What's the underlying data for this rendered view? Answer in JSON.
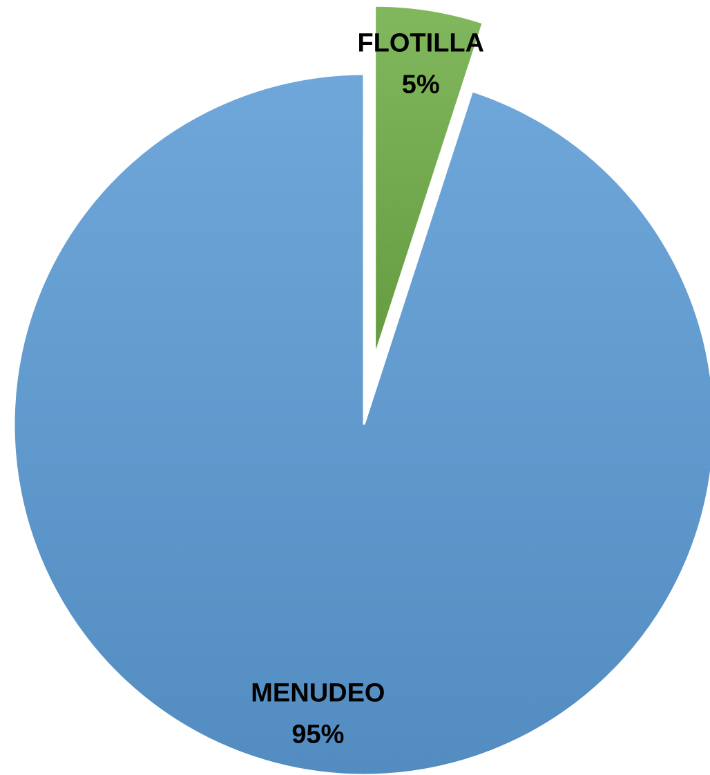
{
  "chart_data": {
    "type": "pie",
    "categories": [
      "FLOTILLA",
      "MENUDEO"
    ],
    "values": [
      5,
      95
    ],
    "value_labels": [
      "5%",
      "95%"
    ],
    "colors": [
      "#70ad47",
      "#5b9bd5"
    ]
  }
}
